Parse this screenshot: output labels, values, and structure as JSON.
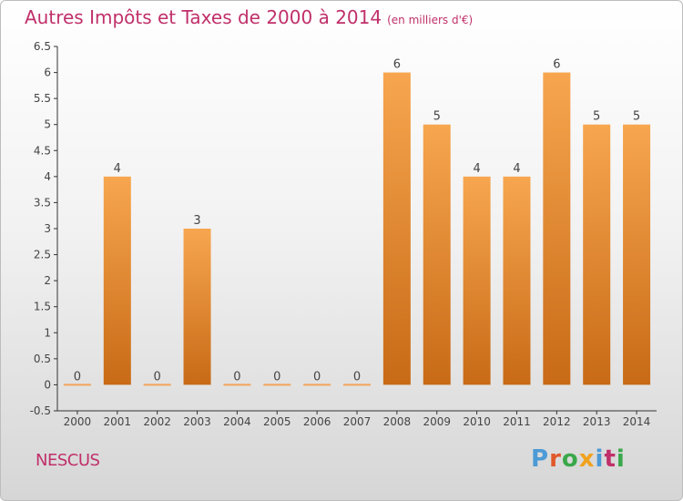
{
  "header": {
    "title": "Autres Impôts et Taxes de 2000 à 2014",
    "unit": "(en milliers d'€)"
  },
  "footer": {
    "commune": "NESCUS",
    "logo": {
      "text": "Proxiti",
      "colors": [
        "#4c9ad6",
        "#e0592a",
        "#3aa84a",
        "#f0a21e",
        "#4c9ad6",
        "#c0306a",
        "#3aa84a"
      ]
    }
  },
  "chart_data": {
    "type": "bar",
    "categories": [
      "2000",
      "2001",
      "2002",
      "2003",
      "2004",
      "2005",
      "2006",
      "2007",
      "2008",
      "2009",
      "2010",
      "2011",
      "2012",
      "2013",
      "2014"
    ],
    "values": [
      0,
      4,
      0,
      3,
      0,
      0,
      0,
      0,
      6,
      5,
      4,
      4,
      6,
      5,
      5
    ],
    "data_labels": [
      "0",
      "4",
      "0",
      "3",
      "0",
      "0",
      "0",
      "0",
      "6",
      "5",
      "4",
      "4",
      "6",
      "5",
      "5"
    ],
    "yticks": [
      "-0.5",
      "0",
      "0.5",
      "1",
      "1.5",
      "2",
      "2.5",
      "3",
      "3.5",
      "4",
      "4.5",
      "5",
      "5.5",
      "6",
      "6.5"
    ],
    "ylim": [
      -0.5,
      6.5
    ],
    "grid": false,
    "colors": {
      "bar_top": "#f7a64f",
      "bar_bottom": "#c86a16",
      "zero_bar": "#f3a45a",
      "axis": "#333333",
      "text": "#444444"
    }
  }
}
